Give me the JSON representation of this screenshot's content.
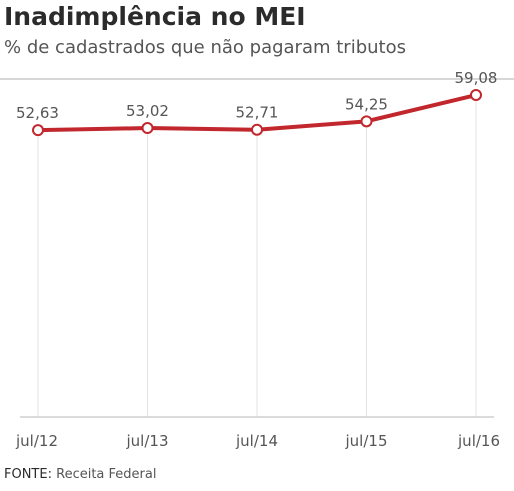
{
  "header": {
    "title": "Inadimplência no MEI",
    "subtitle": "% de cadastrados que não pagaram tributos"
  },
  "footer": {
    "label": "FONTE:",
    "source": "Receita Federal"
  },
  "colors": {
    "line": "#c1272d",
    "grid": "#e3e3e3",
    "axis": "#cfcfcf",
    "text": "#555555"
  },
  "chart_data": {
    "type": "line",
    "categories": [
      "jul/12",
      "jul/13",
      "jul/14",
      "jul/15",
      "jul/16"
    ],
    "series": [
      {
        "values": [
          52.63,
          53.02,
          52.71,
          54.25,
          59.08
        ],
        "labels": [
          "52,63",
          "53,02",
          "52,71",
          "54,25",
          "59,08"
        ]
      }
    ],
    "title": "",
    "xlabel": "",
    "ylabel": "",
    "ylim": [
      0,
      60
    ],
    "grid": "vertical",
    "legend": "none"
  }
}
